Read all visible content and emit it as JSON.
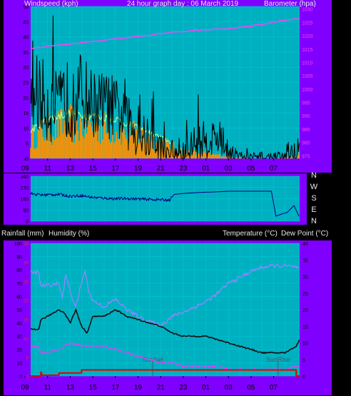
{
  "colors": {
    "background": "#000000",
    "panel": "#8000ff",
    "plot": "#00b0c0",
    "grid": "#00c8d8",
    "text_header": "#e8e8e8",
    "text_bottom": "#000000",
    "wind_axis": "#000000",
    "baro_axis": "#ff40ff",
    "rain_axis": "#ff2020",
    "temp_axis": "#000000"
  },
  "header": {
    "wind": "Windspeed (kph)",
    "title": "24 hour graph day : 06 March 2019",
    "baro": "Barometer (hpa)"
  },
  "middle_labels": {
    "rain": "Rainfall (mm)",
    "humidity": "Humidity (%)",
    "temperature": "Temperature (°C)",
    "dewpoint": "Dew Point (°C)"
  },
  "compass": [
    "N",
    "W",
    "S",
    "E",
    "N"
  ],
  "x_ticks": [
    "11",
    "13",
    "15",
    "17",
    "19",
    "21",
    "23",
    "01",
    "03",
    "05",
    "07",
    "09"
  ],
  "annotations": {
    "sunset": "SunSet",
    "sunrise": "SunRise"
  },
  "chart_data": [
    {
      "type": "line",
      "name": "wind-barometer",
      "x_range": [
        9.5,
        33.3
      ],
      "y_left": {
        "ticks": [
          0,
          5,
          10,
          15,
          20,
          25,
          30,
          35,
          40,
          45,
          50
        ],
        "range": [
          0,
          50
        ]
      },
      "y_right": {
        "ticks": [
          975,
          980,
          985,
          990,
          995,
          1000,
          1005,
          1010,
          1015,
          1020,
          1025,
          1030
        ],
        "range": [
          974,
          1031
        ]
      },
      "wind_profile": {
        "x": [
          9.5,
          10,
          11,
          12,
          12.6,
          13,
          14,
          15,
          16,
          17,
          17.5,
          18,
          19,
          20,
          21,
          21.5,
          22,
          23,
          24,
          25,
          26,
          27,
          28,
          29,
          30,
          31,
          32,
          33,
          33.3
        ],
        "avg": [
          17,
          22,
          18,
          17,
          20,
          18,
          22,
          18,
          18,
          16,
          14,
          12,
          8,
          6,
          4,
          2,
          1,
          1,
          5,
          6,
          7,
          3,
          0,
          0,
          0,
          0,
          0,
          2,
          4
        ],
        "gust": [
          32,
          40,
          38,
          35,
          43,
          38,
          42,
          35,
          30,
          33,
          30,
          28,
          22,
          20,
          15,
          8,
          6,
          8,
          16,
          17,
          15,
          8,
          2,
          1,
          1,
          2,
          3,
          6,
          9
        ],
        "spread": [
          5,
          6,
          6,
          5,
          6,
          6,
          6,
          5,
          5,
          5,
          4,
          4,
          4,
          3,
          2,
          1,
          1,
          2,
          3,
          3,
          3,
          2,
          1,
          1,
          1,
          1,
          1,
          2,
          2
        ]
      },
      "gust_background_profile": {
        "x": [
          9.5,
          11,
          13,
          15,
          17,
          19,
          21,
          23,
          25,
          27,
          29,
          31,
          33,
          33.3
        ],
        "values": [
          9,
          13,
          15,
          14,
          13,
          10,
          7,
          3,
          2,
          1,
          0,
          0,
          1,
          2
        ]
      },
      "barometer": {
        "x": [
          9.5,
          12,
          15,
          18,
          21,
          24,
          27,
          30,
          32,
          33.3
        ],
        "values": [
          1015.2,
          1016.5,
          1017.8,
          1019.2,
          1020.8,
          1022.0,
          1022.6,
          1024.2,
          1026.0,
          1026.4
        ]
      }
    },
    {
      "type": "line",
      "name": "wind-direction",
      "x_range": [
        9.5,
        33.3
      ],
      "y_ticks": [
        0,
        90,
        180,
        270,
        360
      ],
      "values": {
        "x": [
          9.5,
          10.5,
          12,
          13,
          14,
          15,
          16,
          17,
          18,
          19,
          20,
          21,
          21.8,
          22.2,
          23,
          24,
          25,
          26,
          26.6,
          27,
          28,
          29,
          30,
          30.8,
          31.2,
          31.8,
          32.2,
          32.8,
          33.3
        ],
        "y": [
          220,
          210,
          215,
          200,
          205,
          190,
          185,
          180,
          182,
          178,
          175,
          172,
          170,
          215,
          222,
          228,
          232,
          235,
          238,
          240,
          240,
          240,
          240,
          240,
          40,
          60,
          70,
          125,
          30
        ]
      }
    },
    {
      "type": "line",
      "name": "temperature-humidity-rainfall",
      "x_range": [
        9.5,
        33.3
      ],
      "y_left": {
        "ticks": [
          0,
          10,
          20,
          30,
          40,
          50,
          60,
          70,
          80,
          90,
          100
        ],
        "range": [
          0,
          100
        ]
      },
      "y_left_red": {
        "ticks": [
          0,
          5,
          10,
          15,
          20,
          25,
          30,
          35
        ],
        "range": [
          0,
          35
        ]
      },
      "y_right": {
        "ticks": [
          0,
          5,
          10,
          15,
          20,
          25,
          30,
          35,
          40
        ],
        "range": [
          0,
          40
        ]
      },
      "humidity": {
        "x": [
          9.5,
          10.2,
          10.4,
          11,
          12,
          12.3,
          12.6,
          13,
          13.5,
          14,
          14.3,
          14.6,
          15,
          16,
          17,
          18,
          19,
          20,
          21,
          22,
          23,
          24,
          25,
          26,
          27,
          28,
          29,
          30,
          31,
          32,
          33,
          33.3
        ],
        "y": [
          78,
          78,
          68,
          68,
          70,
          58,
          77,
          63,
          52,
          70,
          80,
          65,
          57,
          52,
          58,
          50,
          45,
          41,
          38,
          45,
          48,
          52,
          56,
          62,
          70,
          74,
          79,
          82,
          83,
          83,
          82,
          80
        ]
      },
      "temperature": {
        "x": [
          9.5,
          10.2,
          10.4,
          11,
          12,
          12.5,
          13,
          13.5,
          14,
          14.5,
          15,
          16,
          17,
          18,
          19,
          20,
          21,
          22,
          23,
          24,
          25,
          26,
          27,
          28,
          29,
          30,
          31,
          32,
          33,
          33.3
        ],
        "y": [
          14,
          14,
          17,
          18,
          20,
          19,
          16,
          20,
          15,
          13,
          18,
          18,
          20,
          18,
          17,
          16,
          15,
          13,
          12,
          12,
          12,
          11,
          10,
          9,
          8,
          7,
          7,
          7,
          9,
          11
        ]
      },
      "dewpoint": {
        "x": [
          9.5,
          10.2,
          10.4,
          11,
          12,
          13,
          14,
          15,
          16,
          17,
          18,
          19,
          20,
          21,
          22,
          23,
          24,
          25,
          26,
          27,
          28,
          29,
          30,
          31,
          32,
          33,
          33.3
        ],
        "y": [
          9,
          9,
          7,
          7,
          8,
          10,
          9,
          9,
          9,
          8,
          7,
          6,
          5,
          4,
          4,
          3,
          3,
          3,
          3,
          2,
          2,
          2,
          2,
          2,
          2,
          3,
          3
        ]
      },
      "rainfall": {
        "x": [
          9.5,
          10.4,
          10.4,
          10.45,
          10.5,
          10.6,
          12,
          12,
          14,
          14,
          21,
          21,
          31.6,
          31.6,
          33.0,
          33.0,
          33.3
        ],
        "y": [
          0,
          0,
          1.0,
          1.0,
          0.2,
          0.2,
          0.2,
          0.8,
          0.8,
          1.6,
          1.6,
          1.6,
          1.6,
          1.6,
          1.6,
          0,
          0
        ]
      },
      "sun_lines": [
        20.3,
        31.4
      ]
    }
  ]
}
